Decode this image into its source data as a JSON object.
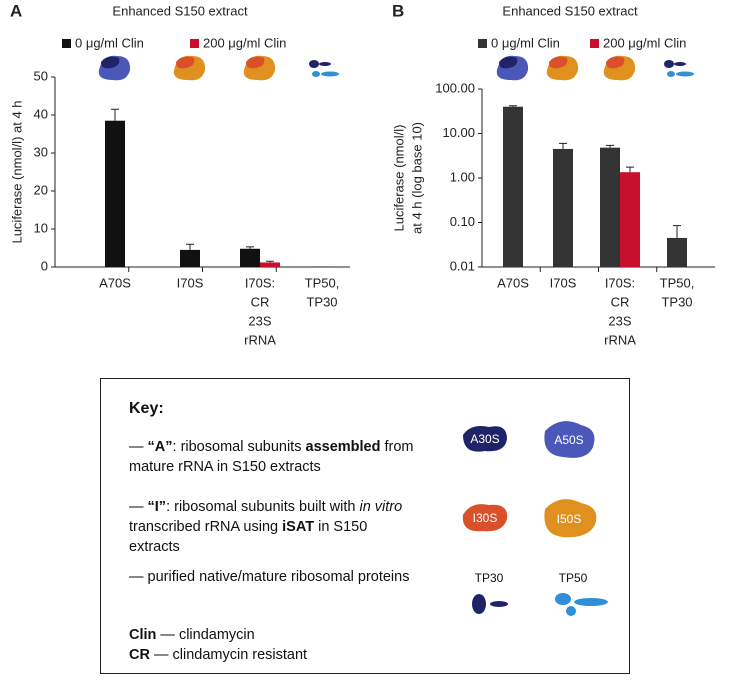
{
  "chart_data": [
    {
      "type": "bar",
      "panel": "A",
      "title": "Enhanced S150 extract",
      "ylabel": [
        "Luciferase (nmol/l) at 4 h"
      ],
      "categories": [
        [
          "A70S"
        ],
        [
          "I70S"
        ],
        [
          "I70S:",
          "CR",
          "23S",
          "rRNA"
        ],
        [
          "TP50,",
          "TP30"
        ]
      ],
      "series": [
        {
          "name": "0 μg/ml Clin",
          "color": "#111111",
          "values": [
            38.5,
            4.5,
            4.8,
            0.05
          ],
          "errors": [
            3,
            1.5,
            0.5,
            0
          ]
        },
        {
          "name": "200 μg/ml Clin",
          "color": "#c8102e",
          "values": [
            null,
            null,
            1.2,
            null
          ],
          "errors": [
            null,
            null,
            0.3,
            null
          ]
        }
      ],
      "ylim": [
        0,
        50
      ],
      "yticks": [
        0,
        10,
        20,
        30,
        40,
        50
      ],
      "log": false
    },
    {
      "type": "bar",
      "panel": "B",
      "title": "Enhanced S150 extract",
      "ylabel": [
        "Luciferase (nmol/l)",
        "at 4 h (log base 10)"
      ],
      "categories": [
        [
          "A70S"
        ],
        [
          "I70S"
        ],
        [
          "I70S:",
          "CR",
          "23S",
          "rRNA"
        ],
        [
          "TP50,",
          "TP30"
        ]
      ],
      "series": [
        {
          "name": "0 μg/ml Clin",
          "color": "#333333",
          "values": [
            40,
            4.5,
            4.8,
            0.045
          ],
          "errors": [
            2,
            1.5,
            0.6,
            0.04
          ]
        },
        {
          "name": "200 μg/ml Clin",
          "color": "#c8102e",
          "values": [
            null,
            null,
            1.35,
            null
          ],
          "errors": [
            null,
            null,
            0.4,
            null
          ]
        }
      ],
      "ylim": [
        0.01,
        100
      ],
      "yticks": [
        0.01,
        {
          "value": 0.1,
          "label": "0.10"
        },
        {
          "value": 1,
          "label": "1.00"
        },
        {
          "value": 10,
          "label": "10.00"
        },
        {
          "value": 100,
          "label": "100.00"
        }
      ],
      "log": true
    }
  ],
  "key": {
    "title": "Key:",
    "a": [
      "— ",
      "“A”",
      ": ribosomal subunits ",
      "assembled",
      " from mature rRNA in S150 extracts"
    ],
    "i": [
      "— ",
      "“I”",
      ": ribosomal subunits built with ",
      "in vitro",
      " transcribed rRNA using ",
      "iSAT",
      " in S150 extracts"
    ],
    "tp": "— purified native/mature ribosomal proteins",
    "clin": [
      "Clin",
      " — clindamycin"
    ],
    "cr": [
      "CR",
      " — clindamycin resistant"
    ],
    "icons": [
      "A30S",
      "A50S",
      "I30S",
      "I50S",
      "TP30",
      "TP50"
    ]
  }
}
